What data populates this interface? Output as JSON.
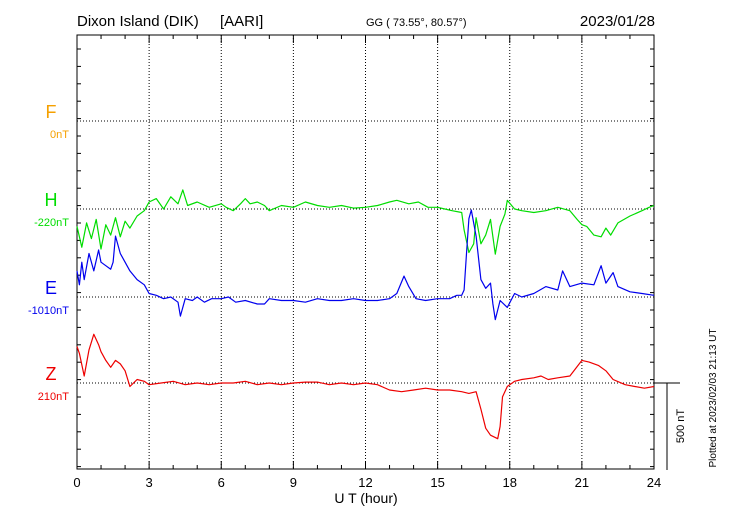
{
  "header": {
    "station": "Dixon Island (DIK)",
    "agency": "[AARI]",
    "coords": "GG ( 73.55°,  80.57°)",
    "date": "2023/01/28"
  },
  "side_note": "Plotted at 2023/02/03 21:13 UT",
  "chart_data": {
    "type": "line",
    "xlabel": "U T (hour)",
    "xlim": [
      0,
      24
    ],
    "xticks": [
      "0",
      "3",
      "6",
      "9",
      "12",
      "15",
      "18",
      "21",
      "24"
    ],
    "scale_bar": {
      "label": "500 nT",
      "value_nT": 500
    },
    "components": [
      {
        "name": "F",
        "baseline_label": "0nT",
        "color": "#f5a000",
        "baseline_nT": 0
      },
      {
        "name": "H",
        "baseline_label": "-220nT",
        "color": "#00dd00",
        "baseline_nT": -220
      },
      {
        "name": "E",
        "baseline_label": "-1010nT",
        "color": "#0000ee",
        "baseline_nT": -1010
      },
      {
        "name": "Z",
        "baseline_label": "210nT",
        "color": "#ee0000",
        "baseline_nT": 210
      }
    ],
    "series": [
      {
        "name": "H",
        "color": "#00dd00",
        "base_row": 1,
        "points": [
          [
            0,
            -100
          ],
          [
            0.2,
            -220
          ],
          [
            0.4,
            -80
          ],
          [
            0.6,
            -170
          ],
          [
            0.8,
            -60
          ],
          [
            1.0,
            -230
          ],
          [
            1.2,
            -90
          ],
          [
            1.4,
            -150
          ],
          [
            1.6,
            -50
          ],
          [
            1.8,
            -160
          ],
          [
            2.0,
            -70
          ],
          [
            2.2,
            -110
          ],
          [
            2.5,
            -40
          ],
          [
            2.8,
            -10
          ],
          [
            3.0,
            40
          ],
          [
            3.3,
            60
          ],
          [
            3.6,
            0
          ],
          [
            3.9,
            70
          ],
          [
            4.2,
            30
          ],
          [
            4.4,
            110
          ],
          [
            4.6,
            20
          ],
          [
            5.0,
            40
          ],
          [
            5.5,
            10
          ],
          [
            6.0,
            30
          ],
          [
            6.2,
            10
          ],
          [
            6.5,
            -10
          ],
          [
            6.8,
            30
          ],
          [
            7.0,
            60
          ],
          [
            7.2,
            30
          ],
          [
            7.5,
            40
          ],
          [
            7.8,
            20
          ],
          [
            8.0,
            -10
          ],
          [
            8.5,
            20
          ],
          [
            9.0,
            10
          ],
          [
            9.5,
            40
          ],
          [
            10.0,
            20
          ],
          [
            10.5,
            10
          ],
          [
            11.0,
            20
          ],
          [
            11.5,
            5
          ],
          [
            12.0,
            10
          ],
          [
            12.5,
            20
          ],
          [
            13.0,
            40
          ],
          [
            13.3,
            50
          ],
          [
            13.8,
            30
          ],
          [
            14.2,
            40
          ],
          [
            14.6,
            10
          ],
          [
            15.0,
            10
          ],
          [
            15.3,
            0
          ],
          [
            15.6,
            -10
          ],
          [
            16.0,
            -20
          ],
          [
            16.1,
            -120
          ],
          [
            16.3,
            -250
          ],
          [
            16.5,
            -200
          ],
          [
            16.6,
            -50
          ],
          [
            16.8,
            -200
          ],
          [
            17.0,
            -150
          ],
          [
            17.2,
            -60
          ],
          [
            17.4,
            -260
          ],
          [
            17.6,
            -100
          ],
          [
            17.8,
            -30
          ],
          [
            17.9,
            50
          ],
          [
            18.2,
            0
          ],
          [
            18.5,
            -10
          ],
          [
            19.0,
            -20
          ],
          [
            19.5,
            -10
          ],
          [
            20.0,
            10
          ],
          [
            20.5,
            -10
          ],
          [
            20.8,
            -60
          ],
          [
            21.0,
            -90
          ],
          [
            21.2,
            -100
          ],
          [
            21.5,
            -150
          ],
          [
            21.8,
            -160
          ],
          [
            22.0,
            -110
          ],
          [
            22.2,
            -150
          ],
          [
            22.5,
            -80
          ],
          [
            23.0,
            -40
          ],
          [
            23.5,
            -10
          ],
          [
            23.8,
            10
          ],
          [
            24.0,
            20
          ]
        ]
      },
      {
        "name": "E",
        "color": "#0000ee",
        "base_row": 2,
        "points": [
          [
            0,
            150
          ],
          [
            0.1,
            70
          ],
          [
            0.2,
            200
          ],
          [
            0.3,
            100
          ],
          [
            0.5,
            250
          ],
          [
            0.7,
            150
          ],
          [
            0.9,
            270
          ],
          [
            1.0,
            200
          ],
          [
            1.2,
            180
          ],
          [
            1.4,
            160
          ],
          [
            1.5,
            200
          ],
          [
            1.6,
            350
          ],
          [
            1.8,
            250
          ],
          [
            2.0,
            200
          ],
          [
            2.2,
            150
          ],
          [
            2.5,
            100
          ],
          [
            2.8,
            70
          ],
          [
            3.0,
            20
          ],
          [
            3.3,
            10
          ],
          [
            3.6,
            -10
          ],
          [
            3.9,
            0
          ],
          [
            4.2,
            -30
          ],
          [
            4.3,
            -110
          ],
          [
            4.5,
            -10
          ],
          [
            4.8,
            -20
          ],
          [
            5.0,
            0
          ],
          [
            5.3,
            -30
          ],
          [
            5.6,
            -10
          ],
          [
            6.0,
            -10
          ],
          [
            6.3,
            0
          ],
          [
            6.6,
            -30
          ],
          [
            7.0,
            -20
          ],
          [
            7.5,
            -40
          ],
          [
            7.8,
            -40
          ],
          [
            8.0,
            -10
          ],
          [
            8.5,
            -20
          ],
          [
            9.0,
            -20
          ],
          [
            9.5,
            -30
          ],
          [
            10.0,
            -10
          ],
          [
            10.5,
            -20
          ],
          [
            11.0,
            -20
          ],
          [
            11.5,
            -10
          ],
          [
            12.0,
            -20
          ],
          [
            12.5,
            -20
          ],
          [
            13.0,
            -10
          ],
          [
            13.3,
            20
          ],
          [
            13.6,
            120
          ],
          [
            13.8,
            60
          ],
          [
            14.1,
            -10
          ],
          [
            14.5,
            -20
          ],
          [
            15.0,
            -10
          ],
          [
            15.5,
            -10
          ],
          [
            15.8,
            10
          ],
          [
            16.0,
            10
          ],
          [
            16.1,
            40
          ],
          [
            16.2,
            250
          ],
          [
            16.3,
            450
          ],
          [
            16.4,
            500
          ],
          [
            16.6,
            350
          ],
          [
            16.8,
            100
          ],
          [
            17.0,
            50
          ],
          [
            17.2,
            80
          ],
          [
            17.3,
            -40
          ],
          [
            17.4,
            -130
          ],
          [
            17.6,
            -20
          ],
          [
            17.9,
            -60
          ],
          [
            18.2,
            20
          ],
          [
            18.5,
            0
          ],
          [
            19.0,
            20
          ],
          [
            19.5,
            60
          ],
          [
            20.0,
            40
          ],
          [
            20.2,
            150
          ],
          [
            20.5,
            60
          ],
          [
            21.0,
            80
          ],
          [
            21.5,
            70
          ],
          [
            21.8,
            180
          ],
          [
            22.0,
            80
          ],
          [
            22.3,
            140
          ],
          [
            22.5,
            60
          ],
          [
            23.0,
            30
          ],
          [
            23.5,
            20
          ],
          [
            24.0,
            10
          ]
        ]
      },
      {
        "name": "Z",
        "color": "#ee0000",
        "base_row": 3,
        "points": [
          [
            0,
            210
          ],
          [
            0.1,
            170
          ],
          [
            0.3,
            40
          ],
          [
            0.5,
            190
          ],
          [
            0.7,
            280
          ],
          [
            0.9,
            220
          ],
          [
            1.0,
            180
          ],
          [
            1.2,
            130
          ],
          [
            1.4,
            90
          ],
          [
            1.6,
            130
          ],
          [
            1.8,
            110
          ],
          [
            2.0,
            70
          ],
          [
            2.2,
            -20
          ],
          [
            2.5,
            20
          ],
          [
            2.8,
            10
          ],
          [
            3.0,
            -10
          ],
          [
            3.5,
            0
          ],
          [
            4.0,
            10
          ],
          [
            4.5,
            -10
          ],
          [
            5.0,
            0
          ],
          [
            5.5,
            -10
          ],
          [
            6.0,
            0
          ],
          [
            6.5,
            0
          ],
          [
            7.0,
            10
          ],
          [
            7.5,
            -10
          ],
          [
            8.0,
            0
          ],
          [
            8.5,
            -10
          ],
          [
            9.0,
            0
          ],
          [
            9.5,
            5
          ],
          [
            10.0,
            5
          ],
          [
            10.5,
            -10
          ],
          [
            11.0,
            0
          ],
          [
            11.5,
            -10
          ],
          [
            12.0,
            0
          ],
          [
            12.5,
            -10
          ],
          [
            13.0,
            -40
          ],
          [
            13.5,
            -50
          ],
          [
            14.0,
            -40
          ],
          [
            14.5,
            -30
          ],
          [
            15.0,
            -40
          ],
          [
            15.5,
            -40
          ],
          [
            16.0,
            -50
          ],
          [
            16.3,
            -60
          ],
          [
            16.6,
            -50
          ],
          [
            16.8,
            -150
          ],
          [
            17.0,
            -260
          ],
          [
            17.2,
            -300
          ],
          [
            17.5,
            -320
          ],
          [
            17.6,
            -250
          ],
          [
            17.7,
            -80
          ],
          [
            17.9,
            -20
          ],
          [
            18.2,
            10
          ],
          [
            18.5,
            20
          ],
          [
            19.0,
            30
          ],
          [
            19.3,
            40
          ],
          [
            19.6,
            20
          ],
          [
            20.0,
            30
          ],
          [
            20.5,
            40
          ],
          [
            21.0,
            130
          ],
          [
            21.3,
            120
          ],
          [
            21.7,
            100
          ],
          [
            22.0,
            70
          ],
          [
            22.3,
            20
          ],
          [
            22.8,
            -10
          ],
          [
            23.2,
            -20
          ],
          [
            23.6,
            -30
          ],
          [
            24.0,
            -20
          ]
        ]
      }
    ]
  }
}
